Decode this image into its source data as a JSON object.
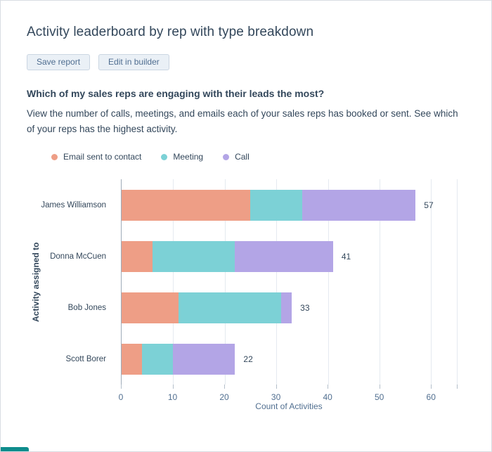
{
  "page": {
    "title": "Activity leaderboard by rep with type breakdown"
  },
  "toolbar": {
    "save_label": "Save report",
    "edit_label": "Edit in builder"
  },
  "description": {
    "heading": "Which of my sales reps are engaging with their leads the most?",
    "body": "View the number of calls, meetings, and emails each of your sales reps has booked or sent. See which of your reps has the highest activity."
  },
  "colors": {
    "email": "#ee9e86",
    "meeting": "#7cd1d6",
    "call": "#b3a5e6",
    "partial_teal": "#0e8c8c"
  },
  "chart_data": {
    "type": "bar",
    "orientation": "horizontal",
    "stacked": true,
    "title": "",
    "categories": [
      "James Williamson",
      "Donna McCuen",
      "Bob Jones",
      "Scott Borer"
    ],
    "series": [
      {
        "name": "Email sent to contact",
        "color": "#ee9e86",
        "values": [
          25,
          6,
          11,
          4
        ]
      },
      {
        "name": "Meeting",
        "color": "#7cd1d6",
        "values": [
          10,
          16,
          20,
          6
        ]
      },
      {
        "name": "Call",
        "color": "#b3a5e6",
        "values": [
          22,
          19,
          2,
          12
        ]
      }
    ],
    "totals": [
      57,
      41,
      33,
      22
    ],
    "xlabel": "Count of Activities",
    "ylabel": "Activity assigned to",
    "xticks": [
      0,
      10,
      20,
      30,
      40,
      50,
      60
    ],
    "xlim": [
      0,
      65
    ],
    "grid": "vertical",
    "legend_position": "top-left"
  }
}
